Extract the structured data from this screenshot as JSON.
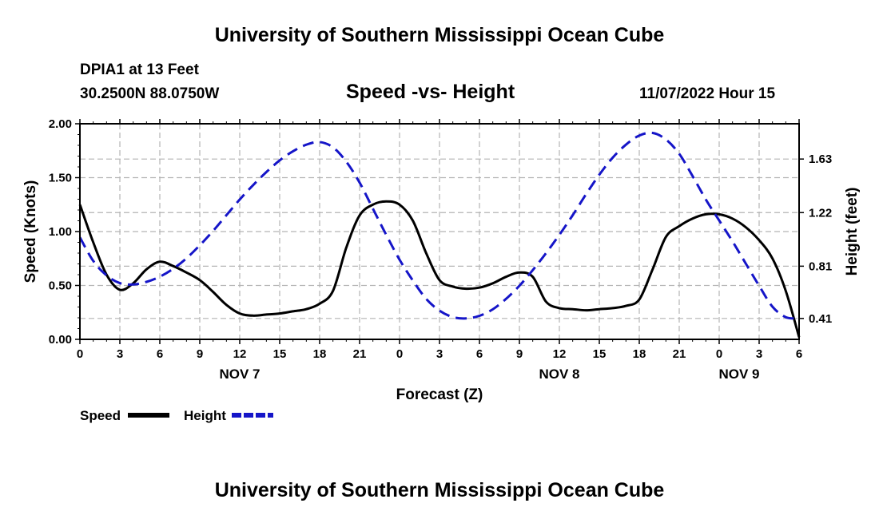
{
  "header": {
    "title": "University of Southern Mississippi Ocean Cube",
    "station": "DPIA1 at 13 Feet",
    "location": "30.2500N  88.0750W",
    "subtitle": "Speed -vs- Height",
    "datetime": "11/07/2022 Hour 15"
  },
  "footer": {
    "title": "University of Southern Mississippi Ocean Cube"
  },
  "chart_data": {
    "type": "line",
    "title": "Speed -vs- Height",
    "xlabel": "Forecast (Z)",
    "ylabel": "Speed (Knots)",
    "y2label": "Height (feet)",
    "x_range_hours": [
      0,
      54
    ],
    "ylim": [
      0,
      2.0
    ],
    "y2lim": [
      0.25,
      1.9
    ],
    "y_ticks": [
      "0.00",
      "0.50",
      "1.00",
      "1.50",
      "2.00"
    ],
    "y2_ticks": [
      {
        "value": 0.41,
        "label": "0.41"
      },
      {
        "value": 0.81,
        "label": "0.81"
      },
      {
        "value": 1.22,
        "label": "1.22"
      },
      {
        "value": 1.63,
        "label": "1.63"
      }
    ],
    "x_ticks": [
      {
        "hour": 0,
        "label": "0"
      },
      {
        "hour": 3,
        "label": "3"
      },
      {
        "hour": 6,
        "label": "6"
      },
      {
        "hour": 9,
        "label": "9"
      },
      {
        "hour": 12,
        "label": "12"
      },
      {
        "hour": 15,
        "label": "15"
      },
      {
        "hour": 18,
        "label": "18"
      },
      {
        "hour": 21,
        "label": "21"
      },
      {
        "hour": 24,
        "label": "0"
      },
      {
        "hour": 27,
        "label": "3"
      },
      {
        "hour": 30,
        "label": "6"
      },
      {
        "hour": 33,
        "label": "9"
      },
      {
        "hour": 36,
        "label": "12"
      },
      {
        "hour": 39,
        "label": "15"
      },
      {
        "hour": 42,
        "label": "18"
      },
      {
        "hour": 45,
        "label": "21"
      },
      {
        "hour": 48,
        "label": "0"
      },
      {
        "hour": 51,
        "label": "3"
      },
      {
        "hour": 54,
        "label": "6"
      }
    ],
    "date_labels": [
      {
        "hour": 12,
        "label": "NOV 7"
      },
      {
        "hour": 36,
        "label": "NOV 8"
      },
      {
        "hour": 49.5,
        "label": "NOV 9"
      }
    ],
    "grid": true,
    "legend_position": "bottom-left",
    "series": [
      {
        "name": "Speed",
        "axis": "left",
        "color": "#000000",
        "dash": "solid",
        "points": [
          [
            0,
            1.25
          ],
          [
            1,
            0.9
          ],
          [
            2,
            0.6
          ],
          [
            3,
            0.46
          ],
          [
            4,
            0.52
          ],
          [
            5,
            0.65
          ],
          [
            6,
            0.72
          ],
          [
            7,
            0.68
          ],
          [
            8,
            0.62
          ],
          [
            9,
            0.55
          ],
          [
            10,
            0.44
          ],
          [
            11,
            0.32
          ],
          [
            12,
            0.24
          ],
          [
            13,
            0.22
          ],
          [
            14,
            0.23
          ],
          [
            15,
            0.24
          ],
          [
            16,
            0.26
          ],
          [
            17,
            0.28
          ],
          [
            18,
            0.33
          ],
          [
            19,
            0.45
          ],
          [
            20,
            0.85
          ],
          [
            21,
            1.15
          ],
          [
            22,
            1.25
          ],
          [
            23,
            1.28
          ],
          [
            24,
            1.25
          ],
          [
            25,
            1.1
          ],
          [
            26,
            0.8
          ],
          [
            27,
            0.55
          ],
          [
            28,
            0.49
          ],
          [
            29,
            0.47
          ],
          [
            30,
            0.48
          ],
          [
            31,
            0.52
          ],
          [
            32,
            0.58
          ],
          [
            33,
            0.62
          ],
          [
            34,
            0.58
          ],
          [
            35,
            0.35
          ],
          [
            36,
            0.29
          ],
          [
            37,
            0.28
          ],
          [
            38,
            0.27
          ],
          [
            39,
            0.28
          ],
          [
            40,
            0.29
          ],
          [
            41,
            0.31
          ],
          [
            42,
            0.37
          ],
          [
            43,
            0.65
          ],
          [
            44,
            0.95
          ],
          [
            45,
            1.05
          ],
          [
            46,
            1.12
          ],
          [
            47,
            1.16
          ],
          [
            48,
            1.16
          ],
          [
            49,
            1.12
          ],
          [
            50,
            1.04
          ],
          [
            51,
            0.92
          ],
          [
            52,
            0.75
          ],
          [
            53,
            0.45
          ],
          [
            54,
            0.02
          ]
        ]
      },
      {
        "name": "Height",
        "axis": "right",
        "color": "#1515c8",
        "dash": "dashed",
        "points": [
          [
            0,
            1.03
          ],
          [
            1,
            0.85
          ],
          [
            2,
            0.74
          ],
          [
            3,
            0.68
          ],
          [
            4,
            0.67
          ],
          [
            5,
            0.69
          ],
          [
            6,
            0.73
          ],
          [
            7,
            0.79
          ],
          [
            8,
            0.87
          ],
          [
            9,
            0.97
          ],
          [
            10,
            1.08
          ],
          [
            11,
            1.2
          ],
          [
            12,
            1.32
          ],
          [
            13,
            1.43
          ],
          [
            14,
            1.53
          ],
          [
            15,
            1.62
          ],
          [
            16,
            1.69
          ],
          [
            17,
            1.74
          ],
          [
            18,
            1.76
          ],
          [
            19,
            1.72
          ],
          [
            20,
            1.61
          ],
          [
            21,
            1.45
          ],
          [
            22,
            1.25
          ],
          [
            23,
            1.05
          ],
          [
            24,
            0.86
          ],
          [
            25,
            0.7
          ],
          [
            26,
            0.56
          ],
          [
            27,
            0.47
          ],
          [
            28,
            0.42
          ],
          [
            29,
            0.41
          ],
          [
            30,
            0.43
          ],
          [
            31,
            0.48
          ],
          [
            32,
            0.56
          ],
          [
            33,
            0.66
          ],
          [
            34,
            0.78
          ],
          [
            35,
            0.91
          ],
          [
            36,
            1.05
          ],
          [
            37,
            1.2
          ],
          [
            38,
            1.36
          ],
          [
            39,
            1.51
          ],
          [
            40,
            1.64
          ],
          [
            41,
            1.74
          ],
          [
            42,
            1.81
          ],
          [
            43,
            1.83
          ],
          [
            44,
            1.78
          ],
          [
            45,
            1.67
          ],
          [
            46,
            1.5
          ],
          [
            47,
            1.32
          ],
          [
            48,
            1.16
          ],
          [
            49,
            1.0
          ],
          [
            50,
            0.83
          ],
          [
            51,
            0.66
          ],
          [
            52,
            0.5
          ],
          [
            53,
            0.42
          ],
          [
            54,
            0.41
          ]
        ]
      }
    ]
  }
}
